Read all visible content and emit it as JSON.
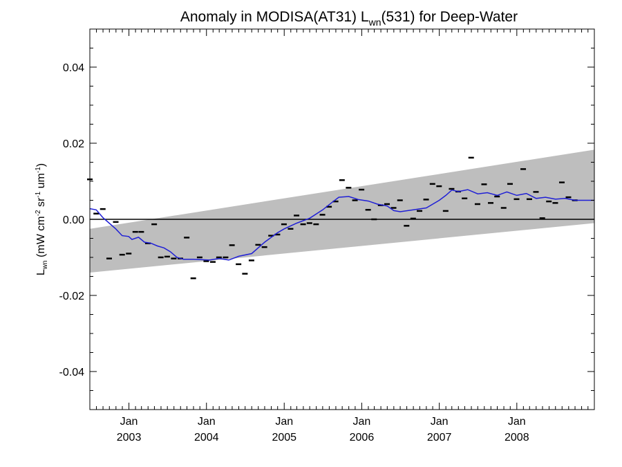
{
  "chart_data": {
    "type": "scatter",
    "title_parts": {
      "pre": "Anomaly in MODISA(AT31) L",
      "sub": "wn",
      "post": "(531) for Deep-Water"
    },
    "ylabel_parts": {
      "l": "L",
      "l_sub": "wn",
      "unit_open": " (mW cm",
      "exp1": "-2",
      "sr": " sr",
      "exp2": "-1",
      "um": " um",
      "exp3": "-1",
      "close": ")"
    },
    "xlim": [
      "2002-07-01",
      "2008-12-31"
    ],
    "ylim": [
      -0.05,
      0.05
    ],
    "y_ticks": [
      {
        "value": -0.04,
        "label": "-0.04"
      },
      {
        "value": -0.02,
        "label": "-0.02"
      },
      {
        "value": 0.0,
        "label": "0.00"
      },
      {
        "value": 0.02,
        "label": "0.02"
      },
      {
        "value": 0.04,
        "label": "0.04"
      }
    ],
    "x_ticks": [
      {
        "date": "2003-01-01",
        "month": "Jan",
        "year": "2003"
      },
      {
        "date": "2004-01-01",
        "month": "Jan",
        "year": "2004"
      },
      {
        "date": "2005-01-01",
        "month": "Jan",
        "year": "2005"
      },
      {
        "date": "2006-01-01",
        "month": "Jan",
        "year": "2006"
      },
      {
        "date": "2007-01-01",
        "month": "Jan",
        "year": "2007"
      },
      {
        "date": "2008-01-01",
        "month": "Jan",
        "year": "2008"
      }
    ],
    "band": {
      "start": {
        "date": "2002-07-01",
        "lower": -0.014,
        "upper": -0.0025
      },
      "end": {
        "date": "2008-12-31",
        "lower": -0.001,
        "upper": 0.0183
      },
      "color": "#bebebe"
    },
    "zero_line": 0.0,
    "points": [
      {
        "date": "2002-07-01",
        "value": 0.0105
      },
      {
        "date": "2002-07-31",
        "value": 0.0015
      },
      {
        "date": "2002-08-31",
        "value": 0.0027
      },
      {
        "date": "2002-09-30",
        "value": -0.0103
      },
      {
        "date": "2002-10-31",
        "value": -0.0007
      },
      {
        "date": "2002-11-30",
        "value": -0.0093
      },
      {
        "date": "2002-12-31",
        "value": -0.009
      },
      {
        "date": "2003-01-31",
        "value": -0.0033
      },
      {
        "date": "2003-02-28",
        "value": -0.0033
      },
      {
        "date": "2003-03-31",
        "value": -0.0063
      },
      {
        "date": "2003-04-30",
        "value": -0.0013
      },
      {
        "date": "2003-05-31",
        "value": -0.01
      },
      {
        "date": "2003-06-30",
        "value": -0.0098
      },
      {
        "date": "2003-07-31",
        "value": -0.0103
      },
      {
        "date": "2003-08-31",
        "value": -0.0103
      },
      {
        "date": "2003-09-30",
        "value": -0.0048
      },
      {
        "date": "2003-10-31",
        "value": -0.0155
      },
      {
        "date": "2003-11-30",
        "value": -0.01
      },
      {
        "date": "2003-12-31",
        "value": -0.011
      },
      {
        "date": "2004-01-31",
        "value": -0.0112
      },
      {
        "date": "2004-02-29",
        "value": -0.01
      },
      {
        "date": "2004-03-31",
        "value": -0.01
      },
      {
        "date": "2004-04-30",
        "value": -0.0068
      },
      {
        "date": "2004-05-31",
        "value": -0.0118
      },
      {
        "date": "2004-06-30",
        "value": -0.0143
      },
      {
        "date": "2004-07-31",
        "value": -0.0108
      },
      {
        "date": "2004-08-31",
        "value": -0.0067
      },
      {
        "date": "2004-09-30",
        "value": -0.0073
      },
      {
        "date": "2004-10-31",
        "value": -0.0043
      },
      {
        "date": "2004-11-30",
        "value": -0.004
      },
      {
        "date": "2004-12-31",
        "value": -0.0013
      },
      {
        "date": "2005-01-31",
        "value": -0.0025
      },
      {
        "date": "2005-02-28",
        "value": 0.001
      },
      {
        "date": "2005-03-31",
        "value": -0.0013
      },
      {
        "date": "2005-04-30",
        "value": -0.001
      },
      {
        "date": "2005-05-31",
        "value": -0.0013
      },
      {
        "date": "2005-06-30",
        "value": 0.0012
      },
      {
        "date": "2005-07-31",
        "value": 0.0033
      },
      {
        "date": "2005-08-31",
        "value": 0.0047
      },
      {
        "date": "2005-09-30",
        "value": 0.0103
      },
      {
        "date": "2005-10-31",
        "value": 0.0083
      },
      {
        "date": "2005-11-30",
        "value": 0.005
      },
      {
        "date": "2005-12-31",
        "value": 0.0078
      },
      {
        "date": "2006-01-31",
        "value": 0.0025
      },
      {
        "date": "2006-02-28",
        "value": 0.0
      },
      {
        "date": "2006-03-31",
        "value": 0.0037
      },
      {
        "date": "2006-04-30",
        "value": 0.004
      },
      {
        "date": "2006-05-31",
        "value": 0.003
      },
      {
        "date": "2006-06-30",
        "value": 0.005
      },
      {
        "date": "2006-07-31",
        "value": -0.0017
      },
      {
        "date": "2006-08-31",
        "value": 0.0002
      },
      {
        "date": "2006-09-30",
        "value": 0.0022
      },
      {
        "date": "2006-10-31",
        "value": 0.0052
      },
      {
        "date": "2006-11-30",
        "value": 0.0093
      },
      {
        "date": "2006-12-31",
        "value": 0.0087
      },
      {
        "date": "2007-01-31",
        "value": 0.0022
      },
      {
        "date": "2007-02-28",
        "value": 0.008
      },
      {
        "date": "2007-03-31",
        "value": 0.0073
      },
      {
        "date": "2007-04-30",
        "value": 0.0055
      },
      {
        "date": "2007-05-31",
        "value": 0.0162
      },
      {
        "date": "2007-06-30",
        "value": 0.004
      },
      {
        "date": "2007-07-31",
        "value": 0.0092
      },
      {
        "date": "2007-08-31",
        "value": 0.0043
      },
      {
        "date": "2007-09-30",
        "value": 0.006
      },
      {
        "date": "2007-10-31",
        "value": 0.003
      },
      {
        "date": "2007-11-30",
        "value": 0.0093
      },
      {
        "date": "2007-12-31",
        "value": 0.0053
      },
      {
        "date": "2008-01-31",
        "value": 0.0132
      },
      {
        "date": "2008-02-29",
        "value": 0.0053
      },
      {
        "date": "2008-03-31",
        "value": 0.0072
      },
      {
        "date": "2008-04-30",
        "value": 0.0003
      },
      {
        "date": "2008-05-31",
        "value": 0.0047
      },
      {
        "date": "2008-06-30",
        "value": 0.0043
      },
      {
        "date": "2008-07-31",
        "value": 0.0097
      },
      {
        "date": "2008-08-31",
        "value": 0.0058
      },
      {
        "date": "2008-09-30",
        "value": 0.005
      }
    ],
    "trend_line": {
      "color": "#1f1fd6",
      "values": [
        {
          "date": "2002-07-01",
          "value": 0.0028
        },
        {
          "date": "2002-07-31",
          "value": 0.0025
        },
        {
          "date": "2002-08-31",
          "value": 0.0005
        },
        {
          "date": "2002-09-30",
          "value": -0.001
        },
        {
          "date": "2002-10-31",
          "value": -0.0025
        },
        {
          "date": "2002-11-30",
          "value": -0.0043
        },
        {
          "date": "2002-12-31",
          "value": -0.0045
        },
        {
          "date": "2003-01-15",
          "value": -0.0053
        },
        {
          "date": "2003-02-15",
          "value": -0.0047
        },
        {
          "date": "2003-03-15",
          "value": -0.006
        },
        {
          "date": "2003-04-15",
          "value": -0.0063
        },
        {
          "date": "2003-05-15",
          "value": -0.007
        },
        {
          "date": "2003-06-15",
          "value": -0.0075
        },
        {
          "date": "2003-07-15",
          "value": -0.0085
        },
        {
          "date": "2003-08-15",
          "value": -0.01
        },
        {
          "date": "2003-09-15",
          "value": -0.0105
        },
        {
          "date": "2003-11-01",
          "value": -0.0105
        },
        {
          "date": "2004-01-15",
          "value": -0.0107
        },
        {
          "date": "2004-03-01",
          "value": -0.0103
        },
        {
          "date": "2004-04-15",
          "value": -0.0107
        },
        {
          "date": "2004-06-01",
          "value": -0.0097
        },
        {
          "date": "2004-08-01",
          "value": -0.009
        },
        {
          "date": "2004-10-01",
          "value": -0.006
        },
        {
          "date": "2004-12-01",
          "value": -0.0035
        },
        {
          "date": "2005-01-01",
          "value": -0.0025
        },
        {
          "date": "2005-03-01",
          "value": -0.001
        },
        {
          "date": "2005-05-01",
          "value": 0.0003
        },
        {
          "date": "2005-07-01",
          "value": 0.0025
        },
        {
          "date": "2005-08-15",
          "value": 0.0045
        },
        {
          "date": "2005-09-15",
          "value": 0.0058
        },
        {
          "date": "2005-11-01",
          "value": 0.006
        },
        {
          "date": "2005-12-15",
          "value": 0.0052
        },
        {
          "date": "2006-02-01",
          "value": 0.0048
        },
        {
          "date": "2006-03-15",
          "value": 0.004
        },
        {
          "date": "2006-05-01",
          "value": 0.0035
        },
        {
          "date": "2006-06-01",
          "value": 0.0023
        },
        {
          "date": "2006-07-01",
          "value": 0.002
        },
        {
          "date": "2006-09-01",
          "value": 0.0025
        },
        {
          "date": "2006-11-01",
          "value": 0.003
        },
        {
          "date": "2007-01-01",
          "value": 0.005
        },
        {
          "date": "2007-02-01",
          "value": 0.0063
        },
        {
          "date": "2007-03-01",
          "value": 0.0077
        },
        {
          "date": "2007-04-01",
          "value": 0.0073
        },
        {
          "date": "2007-05-15",
          "value": 0.0078
        },
        {
          "date": "2007-07-01",
          "value": 0.0067
        },
        {
          "date": "2007-08-15",
          "value": 0.007
        },
        {
          "date": "2007-10-01",
          "value": 0.0063
        },
        {
          "date": "2007-11-15",
          "value": 0.0072
        },
        {
          "date": "2008-01-01",
          "value": 0.0063
        },
        {
          "date": "2008-02-15",
          "value": 0.0068
        },
        {
          "date": "2008-04-01",
          "value": 0.0055
        },
        {
          "date": "2008-05-15",
          "value": 0.0058
        },
        {
          "date": "2008-07-01",
          "value": 0.0053
        },
        {
          "date": "2008-08-15",
          "value": 0.0055
        },
        {
          "date": "2008-10-01",
          "value": 0.005
        },
        {
          "date": "2008-12-31",
          "value": 0.005
        }
      ]
    },
    "grid": false
  }
}
